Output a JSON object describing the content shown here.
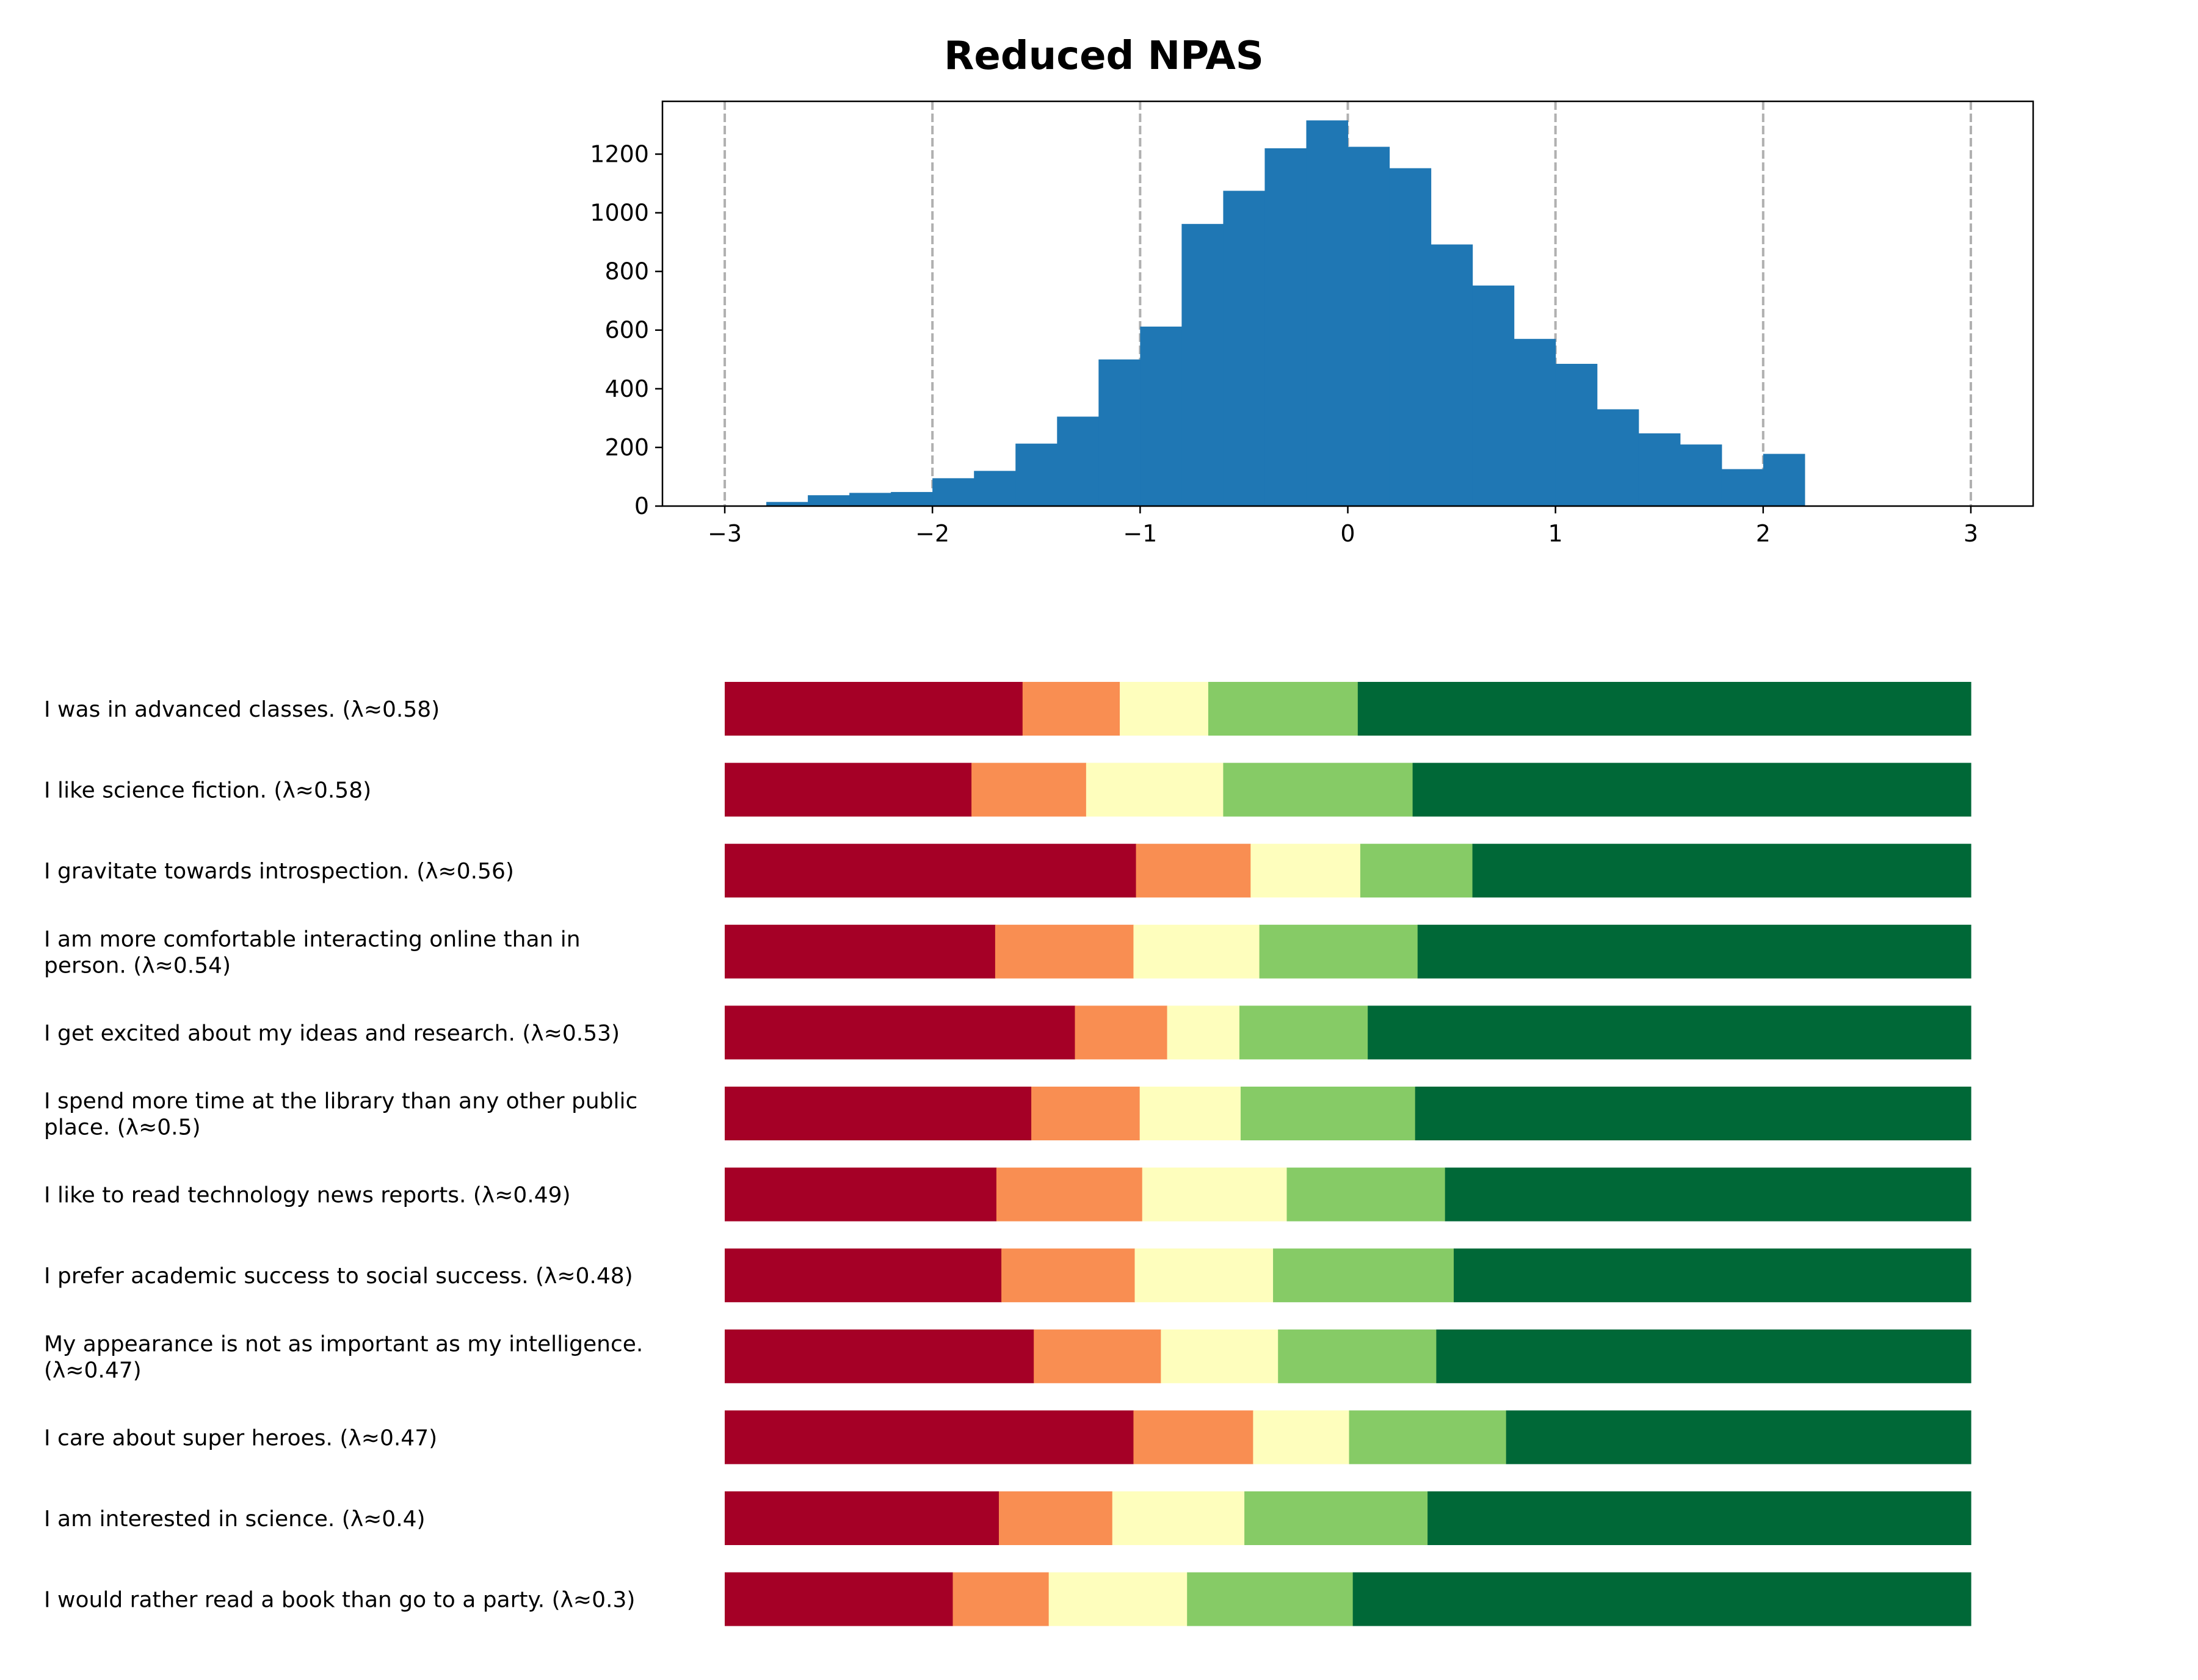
{
  "colors": {
    "bar": "#1f77b4",
    "grid": "#b0b0b0",
    "likert": [
      "#a50026",
      "#f98e52",
      "#fefebd",
      "#86cb66",
      "#006837"
    ]
  },
  "chart_data": [
    {
      "type": "bar",
      "title": "Reduced NPAS",
      "xlabel": "",
      "ylabel": "",
      "xlim": [
        -3.3,
        3.3
      ],
      "ylim": [
        0,
        1380
      ],
      "xticks": [
        -3,
        -2,
        -1,
        0,
        1,
        2,
        3
      ],
      "xtick_labels": [
        "−3",
        "−2",
        "−1",
        "0",
        "1",
        "2",
        "3"
      ],
      "yticks": [
        0,
        200,
        400,
        600,
        800,
        1000,
        1200
      ],
      "vertical_grid_at_xticks": true,
      "grid_style": "dashed",
      "bin_width": 0.2,
      "bin_starts": [
        -2.8,
        -2.6,
        -2.4,
        -2.2,
        -2.0,
        -1.8,
        -1.6,
        -1.4,
        -1.2,
        -1.0,
        -0.8,
        -0.6,
        -0.4,
        -0.2,
        0.0,
        0.2,
        0.4,
        0.6,
        0.8,
        1.0,
        1.2,
        1.4,
        1.6,
        1.8,
        2.0
      ],
      "counts": [
        14,
        37,
        45,
        48,
        95,
        120,
        213,
        305,
        500,
        612,
        962,
        1075,
        1220,
        1315,
        1225,
        1152,
        892,
        752,
        570,
        485,
        330,
        248,
        210,
        126,
        178
      ]
    },
    {
      "type": "bar",
      "orientation": "horizontal",
      "stacked": true,
      "normalized": true,
      "xlim": [
        0,
        1
      ],
      "categories": [
        "I was in advanced classes. (λ≈0.58)",
        "I like science fiction. (λ≈0.58)",
        "I gravitate towards introspection. (λ≈0.56)",
        "I am more comfortable interacting online than in person. (λ≈0.54)",
        "I get excited about my ideas and research. (λ≈0.53)",
        "I spend more time at the library than any other public place. (λ≈0.5)",
        "I like to read technology news reports. (λ≈0.49)",
        "I prefer academic success to social success. (λ≈0.48)",
        "My appearance is not as important as my intelligence. (λ≈0.47)",
        "I care about super heroes. (λ≈0.47)",
        "I am interested in science. (λ≈0.4)",
        "I would rather read a book than go to a party. (λ≈0.3)"
      ],
      "label_lines": [
        [
          "I was in advanced classes. (λ≈0.58)"
        ],
        [
          "I like science fiction. (λ≈0.58)"
        ],
        [
          "I gravitate towards introspection. (λ≈0.56)"
        ],
        [
          "I am more comfortable interacting online than in",
          "person. (λ≈0.54)"
        ],
        [
          "I get excited about my ideas and research. (λ≈0.53)"
        ],
        [
          "I spend more time at the library than any other public",
          "place. (λ≈0.5)"
        ],
        [
          "I like to read technology news reports. (λ≈0.49)"
        ],
        [
          "I prefer academic success to social success. (λ≈0.48)"
        ],
        [
          "My appearance is not as important as my intelligence.",
          "(λ≈0.47)"
        ],
        [
          "I care about super heroes. (λ≈0.47)"
        ],
        [
          "I am interested in science. (λ≈0.4)"
        ],
        [
          "I would rather read a book than go to a party. (λ≈0.3)"
        ]
      ],
      "shares": [
        [
          0.239,
          0.078,
          0.071,
          0.12,
          0.492
        ],
        [
          0.198,
          0.092,
          0.11,
          0.152,
          0.448
        ],
        [
          0.33,
          0.092,
          0.088,
          0.09,
          0.4
        ],
        [
          0.217,
          0.111,
          0.101,
          0.127,
          0.444
        ],
        [
          0.281,
          0.074,
          0.058,
          0.103,
          0.484
        ],
        [
          0.246,
          0.087,
          0.081,
          0.14,
          0.446
        ],
        [
          0.218,
          0.117,
          0.116,
          0.127,
          0.422
        ],
        [
          0.222,
          0.107,
          0.111,
          0.145,
          0.415
        ],
        [
          0.248,
          0.102,
          0.094,
          0.127,
          0.429
        ],
        [
          0.328,
          0.096,
          0.077,
          0.126,
          0.373
        ],
        [
          0.22,
          0.091,
          0.106,
          0.147,
          0.436
        ],
        [
          0.183,
          0.077,
          0.111,
          0.133,
          0.496
        ]
      ]
    }
  ]
}
